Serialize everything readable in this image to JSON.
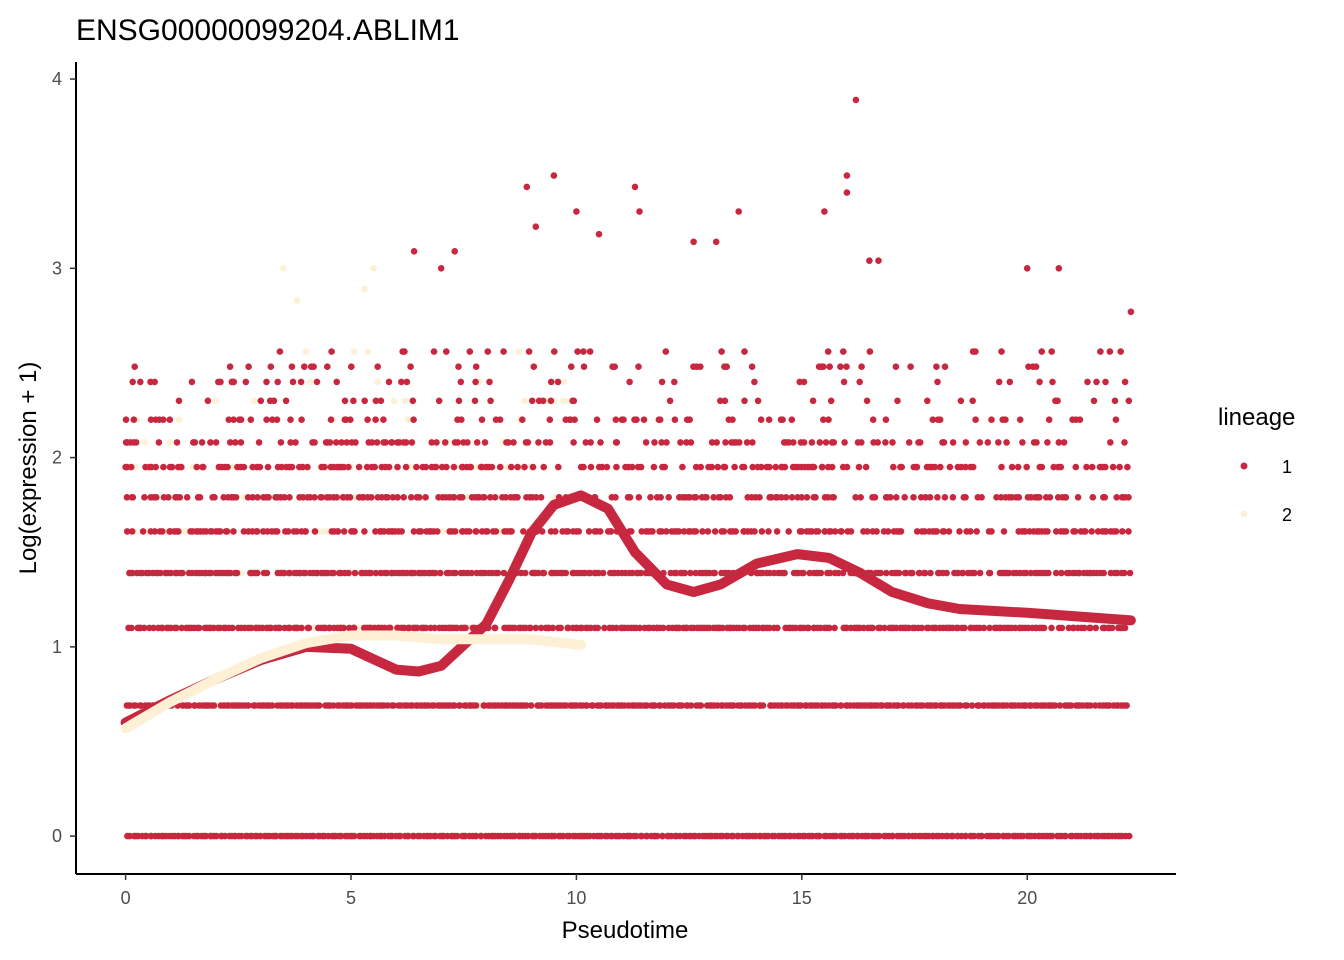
{
  "chart_data": {
    "type": "scatter",
    "title": "ENSG00000099204.ABLIM1",
    "xlabel": "Pseudotime",
    "ylabel": "Log(expression + 1)",
    "xlim": [
      -1.1,
      23.3
    ],
    "ylim": [
      -0.2,
      4.09
    ],
    "x_ticks": [
      0,
      5,
      10,
      15,
      20
    ],
    "y_ticks": [
      0,
      1,
      2,
      3,
      4
    ],
    "x_tick_labels": [
      "0",
      "5",
      "10",
      "15",
      "20"
    ],
    "y_tick_labels": [
      "0",
      "1",
      "2",
      "3",
      "4"
    ],
    "grid": false,
    "legend": {
      "title": "lineage",
      "position": "right",
      "entries": [
        "1",
        "2"
      ]
    },
    "series": [
      {
        "name": "1",
        "color": "#c8283f",
        "expression_levels": [
          0,
          0.69,
          1.1,
          1.39,
          1.61,
          1.79,
          1.95,
          2.08,
          2.2,
          2.3,
          2.4,
          2.48,
          2.56
        ],
        "x_range": [
          0,
          22.3
        ],
        "outliers": [
          [
            0,
            1.95
          ],
          [
            2.4,
            2.4
          ],
          [
            3.0,
            2.3
          ],
          [
            6.4,
            3.09
          ],
          [
            7.0,
            3.0
          ],
          [
            7.3,
            3.09
          ],
          [
            8.9,
            3.43
          ],
          [
            9.1,
            3.22
          ],
          [
            9.5,
            3.49
          ],
          [
            10.0,
            3.3
          ],
          [
            10.5,
            3.18
          ],
          [
            11.3,
            3.43
          ],
          [
            11.4,
            3.3
          ],
          [
            12.6,
            3.14
          ],
          [
            13.1,
            3.14
          ],
          [
            13.6,
            3.3
          ],
          [
            15.5,
            3.3
          ],
          [
            16.0,
            3.49
          ],
          [
            16.0,
            3.4
          ],
          [
            16.2,
            3.89
          ],
          [
            16.5,
            3.04
          ],
          [
            16.7,
            3.04
          ],
          [
            20.0,
            3.0
          ],
          [
            20.7,
            3.0
          ],
          [
            22.3,
            2.77
          ]
        ],
        "smooth": [
          [
            0,
            0.6
          ],
          [
            1,
            0.72
          ],
          [
            2,
            0.83
          ],
          [
            3,
            0.93
          ],
          [
            4,
            1.0
          ],
          [
            5,
            0.99
          ],
          [
            6,
            0.88
          ],
          [
            6.5,
            0.87
          ],
          [
            7,
            0.9
          ],
          [
            8,
            1.12
          ],
          [
            8.5,
            1.35
          ],
          [
            9,
            1.6
          ],
          [
            9.5,
            1.75
          ],
          [
            10.1,
            1.8
          ],
          [
            10.7,
            1.73
          ],
          [
            11.3,
            1.5
          ],
          [
            12,
            1.33
          ],
          [
            12.6,
            1.29
          ],
          [
            13.2,
            1.33
          ],
          [
            14,
            1.44
          ],
          [
            14.9,
            1.49
          ],
          [
            15.6,
            1.47
          ],
          [
            16.3,
            1.39
          ],
          [
            17,
            1.29
          ],
          [
            17.8,
            1.23
          ],
          [
            18.5,
            1.2
          ],
          [
            20,
            1.18
          ],
          [
            22.3,
            1.14
          ]
        ]
      },
      {
        "name": "2",
        "color": "#fdf0d5",
        "expression_levels": [
          0,
          0.69,
          1.1,
          1.39,
          1.61,
          1.79,
          1.95,
          2.08,
          2.2,
          2.3,
          2.4,
          2.56
        ],
        "x_range": [
          0,
          10.1
        ],
        "outliers": [
          [
            3.5,
            3.0
          ],
          [
            5.3,
            2.89
          ],
          [
            5.5,
            3.0
          ],
          [
            3.8,
            2.83
          ],
          [
            2.1,
            2.4
          ],
          [
            6.2,
            2.3
          ]
        ],
        "smooth": [
          [
            0,
            0.57
          ],
          [
            1,
            0.71
          ],
          [
            2,
            0.83
          ],
          [
            3,
            0.94
          ],
          [
            4,
            1.02
          ],
          [
            5,
            1.06
          ],
          [
            6,
            1.06
          ],
          [
            7,
            1.04
          ],
          [
            8,
            1.04
          ],
          [
            9,
            1.04
          ],
          [
            10.1,
            1.01
          ]
        ]
      }
    ]
  }
}
